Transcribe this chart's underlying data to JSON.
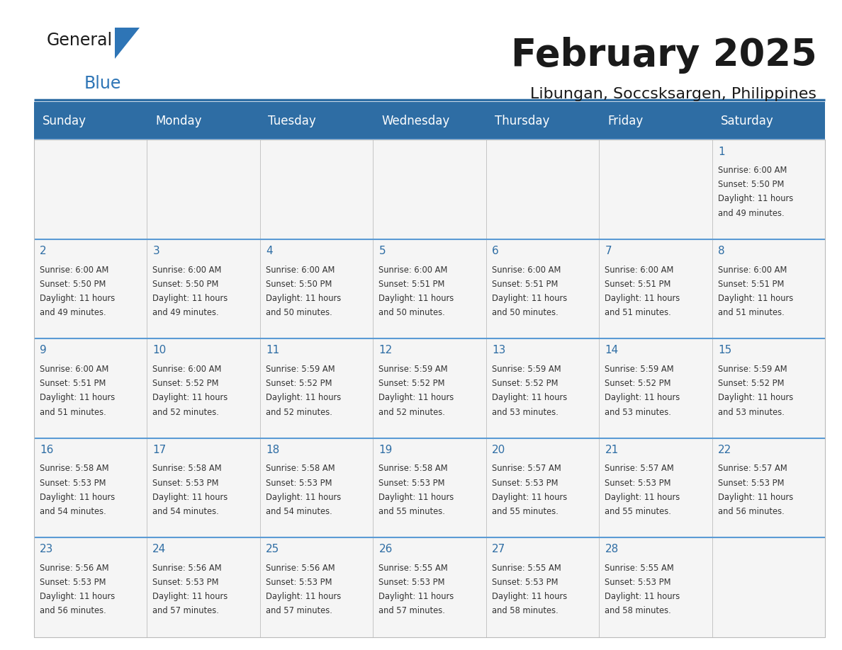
{
  "title": "February 2025",
  "subtitle": "Libungan, Soccsksargen, Philippines",
  "header_bg": "#2E6DA4",
  "header_text_color": "#FFFFFF",
  "cell_bg": "#F5F5F5",
  "day_number_color": "#2E6DA4",
  "detail_text_color": "#333333",
  "border_color": "#BBBBBB",
  "days_of_week": [
    "Sunday",
    "Monday",
    "Tuesday",
    "Wednesday",
    "Thursday",
    "Friday",
    "Saturday"
  ],
  "weeks": [
    [
      {
        "day": "",
        "sunrise": "",
        "sunset": "",
        "daylight": ""
      },
      {
        "day": "",
        "sunrise": "",
        "sunset": "",
        "daylight": ""
      },
      {
        "day": "",
        "sunrise": "",
        "sunset": "",
        "daylight": ""
      },
      {
        "day": "",
        "sunrise": "",
        "sunset": "",
        "daylight": ""
      },
      {
        "day": "",
        "sunrise": "",
        "sunset": "",
        "daylight": ""
      },
      {
        "day": "",
        "sunrise": "",
        "sunset": "",
        "daylight": ""
      },
      {
        "day": "1",
        "sunrise": "6:00 AM",
        "sunset": "5:50 PM",
        "daylight_line1": "11 hours",
        "daylight_line2": "and 49 minutes."
      }
    ],
    [
      {
        "day": "2",
        "sunrise": "6:00 AM",
        "sunset": "5:50 PM",
        "daylight_line1": "11 hours",
        "daylight_line2": "and 49 minutes."
      },
      {
        "day": "3",
        "sunrise": "6:00 AM",
        "sunset": "5:50 PM",
        "daylight_line1": "11 hours",
        "daylight_line2": "and 49 minutes."
      },
      {
        "day": "4",
        "sunrise": "6:00 AM",
        "sunset": "5:50 PM",
        "daylight_line1": "11 hours",
        "daylight_line2": "and 50 minutes."
      },
      {
        "day": "5",
        "sunrise": "6:00 AM",
        "sunset": "5:51 PM",
        "daylight_line1": "11 hours",
        "daylight_line2": "and 50 minutes."
      },
      {
        "day": "6",
        "sunrise": "6:00 AM",
        "sunset": "5:51 PM",
        "daylight_line1": "11 hours",
        "daylight_line2": "and 50 minutes."
      },
      {
        "day": "7",
        "sunrise": "6:00 AM",
        "sunset": "5:51 PM",
        "daylight_line1": "11 hours",
        "daylight_line2": "and 51 minutes."
      },
      {
        "day": "8",
        "sunrise": "6:00 AM",
        "sunset": "5:51 PM",
        "daylight_line1": "11 hours",
        "daylight_line2": "and 51 minutes."
      }
    ],
    [
      {
        "day": "9",
        "sunrise": "6:00 AM",
        "sunset": "5:51 PM",
        "daylight_line1": "11 hours",
        "daylight_line2": "and 51 minutes."
      },
      {
        "day": "10",
        "sunrise": "6:00 AM",
        "sunset": "5:52 PM",
        "daylight_line1": "11 hours",
        "daylight_line2": "and 52 minutes."
      },
      {
        "day": "11",
        "sunrise": "5:59 AM",
        "sunset": "5:52 PM",
        "daylight_line1": "11 hours",
        "daylight_line2": "and 52 minutes."
      },
      {
        "day": "12",
        "sunrise": "5:59 AM",
        "sunset": "5:52 PM",
        "daylight_line1": "11 hours",
        "daylight_line2": "and 52 minutes."
      },
      {
        "day": "13",
        "sunrise": "5:59 AM",
        "sunset": "5:52 PM",
        "daylight_line1": "11 hours",
        "daylight_line2": "and 53 minutes."
      },
      {
        "day": "14",
        "sunrise": "5:59 AM",
        "sunset": "5:52 PM",
        "daylight_line1": "11 hours",
        "daylight_line2": "and 53 minutes."
      },
      {
        "day": "15",
        "sunrise": "5:59 AM",
        "sunset": "5:52 PM",
        "daylight_line1": "11 hours",
        "daylight_line2": "and 53 minutes."
      }
    ],
    [
      {
        "day": "16",
        "sunrise": "5:58 AM",
        "sunset": "5:53 PM",
        "daylight_line1": "11 hours",
        "daylight_line2": "and 54 minutes."
      },
      {
        "day": "17",
        "sunrise": "5:58 AM",
        "sunset": "5:53 PM",
        "daylight_line1": "11 hours",
        "daylight_line2": "and 54 minutes."
      },
      {
        "day": "18",
        "sunrise": "5:58 AM",
        "sunset": "5:53 PM",
        "daylight_line1": "11 hours",
        "daylight_line2": "and 54 minutes."
      },
      {
        "day": "19",
        "sunrise": "5:58 AM",
        "sunset": "5:53 PM",
        "daylight_line1": "11 hours",
        "daylight_line2": "and 55 minutes."
      },
      {
        "day": "20",
        "sunrise": "5:57 AM",
        "sunset": "5:53 PM",
        "daylight_line1": "11 hours",
        "daylight_line2": "and 55 minutes."
      },
      {
        "day": "21",
        "sunrise": "5:57 AM",
        "sunset": "5:53 PM",
        "daylight_line1": "11 hours",
        "daylight_line2": "and 55 minutes."
      },
      {
        "day": "22",
        "sunrise": "5:57 AM",
        "sunset": "5:53 PM",
        "daylight_line1": "11 hours",
        "daylight_line2": "and 56 minutes."
      }
    ],
    [
      {
        "day": "23",
        "sunrise": "5:56 AM",
        "sunset": "5:53 PM",
        "daylight_line1": "11 hours",
        "daylight_line2": "and 56 minutes."
      },
      {
        "day": "24",
        "sunrise": "5:56 AM",
        "sunset": "5:53 PM",
        "daylight_line1": "11 hours",
        "daylight_line2": "and 57 minutes."
      },
      {
        "day": "25",
        "sunrise": "5:56 AM",
        "sunset": "5:53 PM",
        "daylight_line1": "11 hours",
        "daylight_line2": "and 57 minutes."
      },
      {
        "day": "26",
        "sunrise": "5:55 AM",
        "sunset": "5:53 PM",
        "daylight_line1": "11 hours",
        "daylight_line2": "and 57 minutes."
      },
      {
        "day": "27",
        "sunrise": "5:55 AM",
        "sunset": "5:53 PM",
        "daylight_line1": "11 hours",
        "daylight_line2": "and 58 minutes."
      },
      {
        "day": "28",
        "sunrise": "5:55 AM",
        "sunset": "5:53 PM",
        "daylight_line1": "11 hours",
        "daylight_line2": "and 58 minutes."
      },
      {
        "day": "",
        "sunrise": "",
        "sunset": "",
        "daylight_line1": "",
        "daylight_line2": ""
      }
    ]
  ]
}
